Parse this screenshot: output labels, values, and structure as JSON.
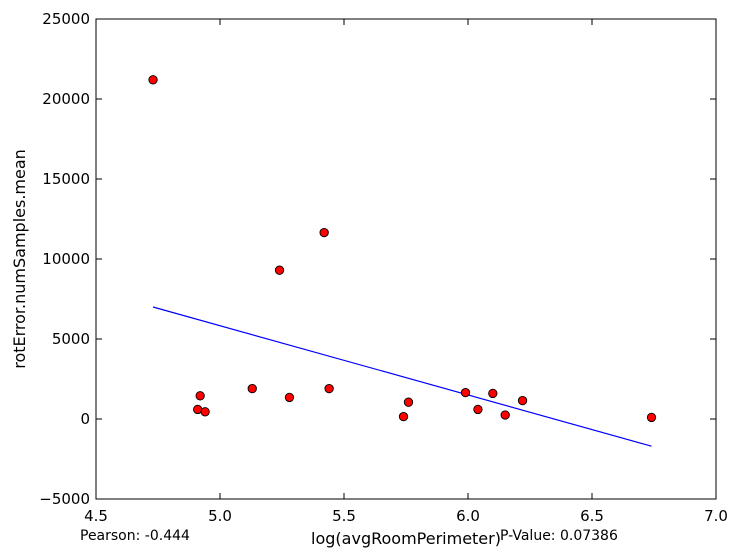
{
  "chart_data": {
    "type": "scatter",
    "xlabel": "log(avgRoomPerimeter)",
    "ylabel": "rotError.numSamples.mean",
    "xlim": [
      4.5,
      7.0
    ],
    "ylim": [
      -5000,
      25000
    ],
    "xticks": [
      4.5,
      5.0,
      5.5,
      6.0,
      6.5,
      7.0
    ],
    "xtick_labels": [
      "4.5",
      "5.0",
      "5.5",
      "6.0",
      "6.5",
      "7.0"
    ],
    "yticks": [
      -5000,
      0,
      5000,
      10000,
      15000,
      20000,
      25000
    ],
    "ytick_labels": [
      "−5000",
      "0",
      "5000",
      "10000",
      "15000",
      "20000",
      "25000"
    ],
    "grid": false,
    "point_color": "#ff0000",
    "fit_color": "#0000ff",
    "points": [
      {
        "x": 4.73,
        "y": 21200
      },
      {
        "x": 4.91,
        "y": 600
      },
      {
        "x": 4.92,
        "y": 1450
      },
      {
        "x": 4.94,
        "y": 450
      },
      {
        "x": 5.13,
        "y": 1900
      },
      {
        "x": 5.24,
        "y": 9300
      },
      {
        "x": 5.28,
        "y": 1350
      },
      {
        "x": 5.42,
        "y": 11650
      },
      {
        "x": 5.44,
        "y": 1900
      },
      {
        "x": 5.74,
        "y": 150
      },
      {
        "x": 5.76,
        "y": 1050
      },
      {
        "x": 5.99,
        "y": 1650
      },
      {
        "x": 6.04,
        "y": 600
      },
      {
        "x": 6.1,
        "y": 1600
      },
      {
        "x": 6.15,
        "y": 250
      },
      {
        "x": 6.22,
        "y": 1150
      },
      {
        "x": 6.74,
        "y": 100
      }
    ],
    "fit_line": {
      "x": [
        4.73,
        6.74
      ],
      "y": [
        7000,
        -1700
      ]
    },
    "annotations": {
      "pearson": "Pearson: -0.444",
      "p_value": "P-Value: 0.07386"
    }
  }
}
